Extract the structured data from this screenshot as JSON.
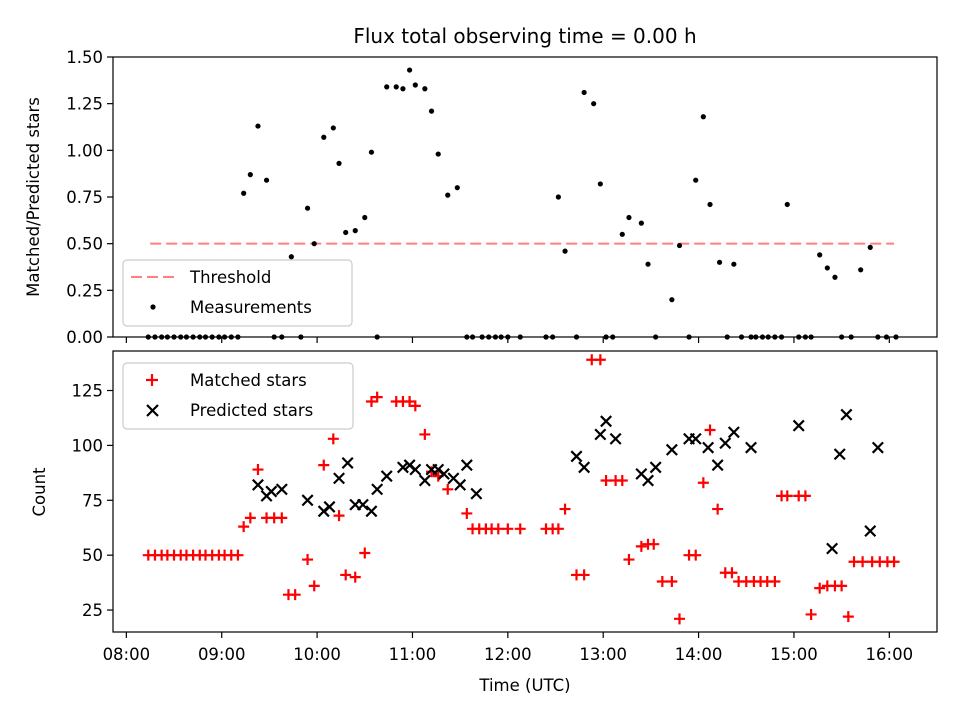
{
  "chart_data": {
    "type": "scatter",
    "title": "Flux total observing time = 0.00 h",
    "xlabel": "Time (UTC)",
    "x_units": "hours since 00:00 UTC",
    "xlim": [
      7.86,
      16.5
    ],
    "x_ticks": [
      {
        "value": 8,
        "label": "08:00"
      },
      {
        "value": 9,
        "label": "09:00"
      },
      {
        "value": 10,
        "label": "10:00"
      },
      {
        "value": 11,
        "label": "11:00"
      },
      {
        "value": 12,
        "label": "12:00"
      },
      {
        "value": 13,
        "label": "13:00"
      },
      {
        "value": 14,
        "label": "14:00"
      },
      {
        "value": 15,
        "label": "15:00"
      },
      {
        "value": 16,
        "label": "16:00"
      }
    ],
    "top": {
      "ylabel": "Matched/Predicted stars",
      "ylim": [
        0,
        1.5
      ],
      "y_ticks": [
        {
          "value": 0,
          "label": "0.00"
        },
        {
          "value": 0.25,
          "label": "0.25"
        },
        {
          "value": 0.5,
          "label": "0.50"
        },
        {
          "value": 0.75,
          "label": "0.75"
        },
        {
          "value": 1.0,
          "label": "1.00"
        },
        {
          "value": 1.25,
          "label": "1.25"
        },
        {
          "value": 1.5,
          "label": "1.50"
        }
      ],
      "legend": {
        "placement": "lower-left",
        "entries": [
          {
            "label": "Threshold",
            "marker": "dashed-line",
            "color": "#ff7f7f"
          },
          {
            "label": "Measurements",
            "marker": "dot",
            "color": "#000000"
          }
        ]
      },
      "threshold": {
        "value": 0.5,
        "x_start": 8.25,
        "x_end": 16.05
      },
      "measurements": {
        "x": [
          8.23,
          8.3,
          8.37,
          8.43,
          8.5,
          8.57,
          8.63,
          8.7,
          8.77,
          8.83,
          8.9,
          8.97,
          9.03,
          9.1,
          9.17,
          9.23,
          9.3,
          9.38,
          9.47,
          9.55,
          9.63,
          9.73,
          9.83,
          9.9,
          9.97,
          10.07,
          10.17,
          10.23,
          10.3,
          10.4,
          10.5,
          10.57,
          10.63,
          10.73,
          10.83,
          10.9,
          10.97,
          11.03,
          11.13,
          11.2,
          11.27,
          11.37,
          11.47,
          11.57,
          11.63,
          11.73,
          11.8,
          11.87,
          11.93,
          12.0,
          12.13,
          12.4,
          12.47,
          12.53,
          12.6,
          12.72,
          12.8,
          12.9,
          12.97,
          13.03,
          13.1,
          13.2,
          13.27,
          13.4,
          13.47,
          13.55,
          13.72,
          13.8,
          13.9,
          13.97,
          14.05,
          14.12,
          14.22,
          14.3,
          14.37,
          14.45,
          14.55,
          14.6,
          14.67,
          14.73,
          14.8,
          14.87,
          14.93,
          15.05,
          15.12,
          15.18,
          15.27,
          15.35,
          15.43,
          15.5,
          15.6,
          15.7,
          15.8,
          15.88,
          15.97,
          16.07
        ],
        "y": [
          0,
          0,
          0,
          0,
          0,
          0,
          0,
          0,
          0,
          0,
          0,
          0,
          0,
          0,
          0,
          0.77,
          0.87,
          1.13,
          0.84,
          0,
          0,
          0.43,
          0,
          0.69,
          0.5,
          1.07,
          1.12,
          0.93,
          0.56,
          0.57,
          0.64,
          0.99,
          0,
          1.34,
          1.34,
          1.33,
          1.43,
          1.35,
          1.33,
          1.21,
          0.98,
          0.76,
          0.8,
          0,
          0,
          0,
          0,
          0,
          0,
          0,
          0,
          0,
          0,
          0.75,
          0.46,
          0,
          1.31,
          1.25,
          0.82,
          0,
          0,
          0.55,
          0.64,
          0.61,
          0.39,
          0,
          0.2,
          0.49,
          0,
          0.84,
          1.18,
          0.71,
          0.4,
          0,
          0.39,
          0,
          0,
          0,
          0,
          0,
          0,
          0,
          0.71,
          0,
          0,
          0,
          0.44,
          0.37,
          0.32,
          0,
          0,
          0.36,
          0.48,
          0,
          0,
          0
        ]
      }
    },
    "bottom": {
      "ylabel": "Count",
      "ylim": [
        15,
        143
      ],
      "y_ticks": [
        {
          "value": 25,
          "label": "25"
        },
        {
          "value": 50,
          "label": "50"
        },
        {
          "value": 75,
          "label": "75"
        },
        {
          "value": 100,
          "label": "100"
        },
        {
          "value": 125,
          "label": "125"
        }
      ],
      "legend": {
        "placement": "upper-left",
        "entries": [
          {
            "label": "Matched stars",
            "marker": "plus",
            "color": "#ff0000"
          },
          {
            "label": "Predicted stars",
            "marker": "x",
            "color": "#000000"
          }
        ]
      },
      "matched": {
        "x": [
          8.23,
          8.3,
          8.37,
          8.43,
          8.5,
          8.57,
          8.63,
          8.7,
          8.77,
          8.83,
          8.9,
          8.97,
          9.03,
          9.1,
          9.17,
          9.23,
          9.3,
          9.38,
          9.47,
          9.55,
          9.63,
          9.7,
          9.77,
          9.9,
          9.97,
          10.07,
          10.17,
          10.23,
          10.3,
          10.4,
          10.5,
          10.57,
          10.63,
          10.83,
          10.9,
          10.97,
          11.03,
          11.13,
          11.2,
          11.27,
          11.37,
          11.57,
          11.63,
          11.7,
          11.77,
          11.83,
          11.9,
          12.0,
          12.13,
          12.4,
          12.47,
          12.53,
          12.6,
          12.72,
          12.8,
          12.88,
          12.97,
          13.03,
          13.13,
          13.2,
          13.27,
          13.4,
          13.47,
          13.53,
          13.62,
          13.72,
          13.8,
          13.9,
          13.97,
          14.05,
          14.12,
          14.2,
          14.28,
          14.35,
          14.42,
          14.5,
          14.58,
          14.65,
          14.72,
          14.8,
          14.87,
          14.93,
          15.05,
          15.12,
          15.18,
          15.27,
          15.35,
          15.43,
          15.5,
          15.57,
          15.63,
          15.72,
          15.82,
          15.9,
          15.98,
          16.05
        ],
        "y": [
          50,
          50,
          50,
          50,
          50,
          50,
          50,
          50,
          50,
          50,
          50,
          50,
          50,
          50,
          50,
          63,
          67,
          89,
          67,
          67,
          67,
          32,
          32,
          48,
          36,
          91,
          103,
          68,
          41,
          40,
          51,
          120,
          122,
          120,
          120,
          120,
          118,
          105,
          88,
          86,
          80,
          69,
          62,
          62,
          62,
          62,
          62,
          62,
          62,
          62,
          62,
          62,
          71,
          41,
          41,
          139,
          139,
          84,
          84,
          84,
          48,
          54,
          55,
          55,
          38,
          38,
          21,
          50,
          50,
          83,
          107,
          71,
          42,
          42,
          38,
          38,
          38,
          38,
          38,
          38,
          77,
          77,
          77,
          77,
          23,
          35,
          36,
          36,
          36,
          22,
          47,
          47,
          47,
          47,
          47,
          47
        ],
        "note": "values read off the bottom panel; index-aligned with x"
      },
      "predicted": {
        "x": [
          9.38,
          9.47,
          9.52,
          9.63,
          9.9,
          10.07,
          10.13,
          10.23,
          10.32,
          10.4,
          10.48,
          10.57,
          10.63,
          10.73,
          10.9,
          10.97,
          11.03,
          11.13,
          11.2,
          11.27,
          11.33,
          11.43,
          11.5,
          11.57,
          11.67,
          12.72,
          12.8,
          12.97,
          13.03,
          13.13,
          13.4,
          13.47,
          13.55,
          13.72,
          13.9,
          13.97,
          14.1,
          14.2,
          14.28,
          14.37,
          14.55,
          15.05,
          15.4,
          15.48,
          15.55,
          15.8,
          15.88
        ],
        "y": [
          82,
          77,
          79,
          80,
          75,
          70,
          72,
          85,
          92,
          73,
          73,
          70,
          80,
          86,
          90,
          91,
          89,
          84,
          89,
          89,
          87,
          85,
          82,
          91,
          78,
          95,
          90,
          105,
          111,
          103,
          87,
          84,
          90,
          98,
          103,
          103,
          99,
          91,
          101,
          106,
          99,
          109,
          53,
          96,
          114,
          61,
          99
        ]
      }
    }
  }
}
